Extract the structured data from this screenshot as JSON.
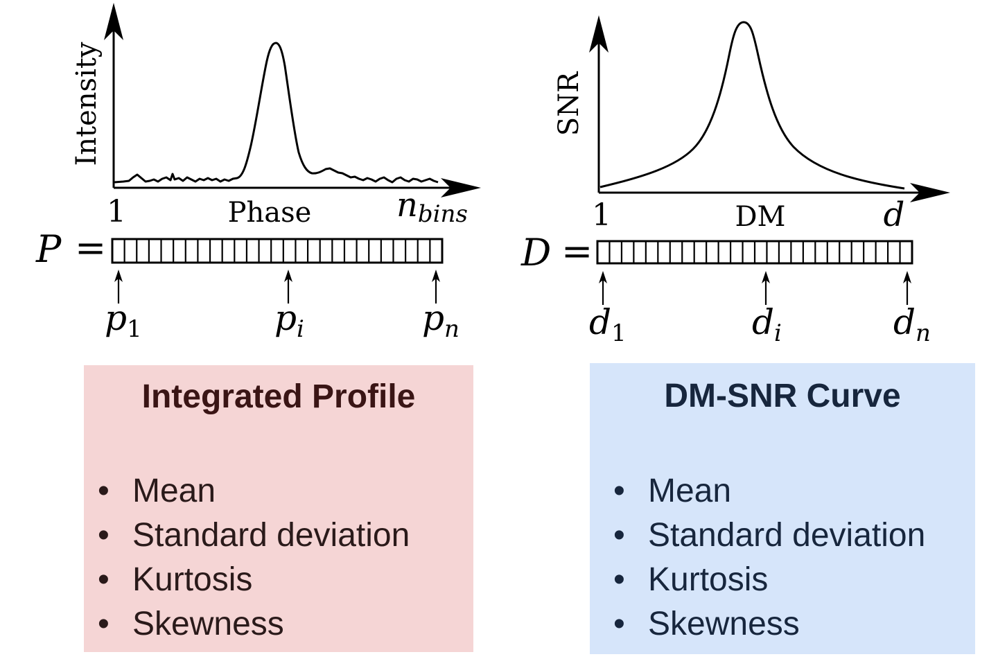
{
  "left_panel": {
    "y_axis_label": "Intensity",
    "x_axis_label": "Phase",
    "x_start": "1",
    "x_end_base": "n",
    "x_end_sub": "bins",
    "array_var": "P",
    "equals": "=",
    "cells": 27,
    "markers": [
      {
        "base": "p",
        "sub": "1"
      },
      {
        "base": "p",
        "sub": "i"
      },
      {
        "base": "p",
        "sub": "n"
      }
    ],
    "box": {
      "title": "Integrated Profile",
      "items": [
        "Mean",
        "Standard deviation",
        "Kurtosis",
        "Skewness"
      ],
      "color": "#f5d5d5"
    }
  },
  "right_panel": {
    "y_axis_label": "SNR",
    "x_axis_label": "DM",
    "x_start": "1",
    "x_end": "d",
    "array_var": "D",
    "equals": "=",
    "cells": 26,
    "markers": [
      {
        "base": "d",
        "sub": "1"
      },
      {
        "base": "d",
        "sub": "i"
      },
      {
        "base": "d",
        "sub": "n"
      }
    ],
    "box": {
      "title": "DM-SNR Curve",
      "items": [
        "Mean",
        "Standard deviation",
        "Kurtosis",
        "Skewness"
      ],
      "color": "#d6e5fa"
    }
  },
  "bullet": "•"
}
